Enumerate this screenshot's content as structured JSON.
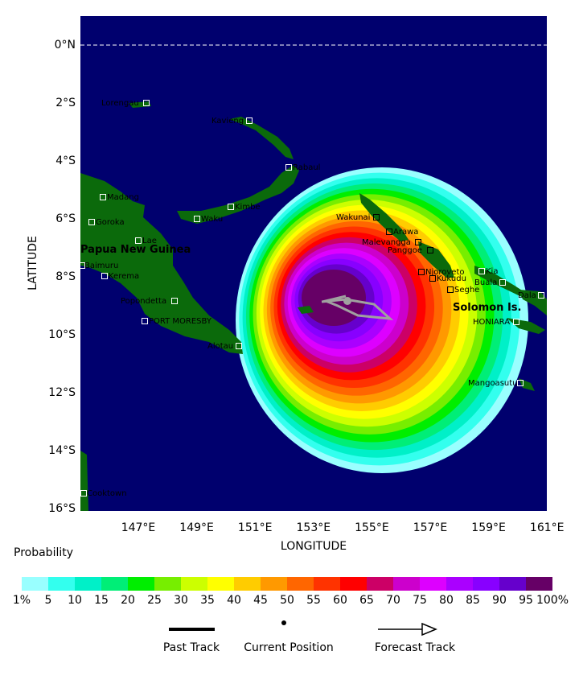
{
  "axes": {
    "x_label": "LONGITUDE",
    "y_label": "LATITUDE",
    "x_ticks": [
      "147°E",
      "149°E",
      "151°E",
      "153°E",
      "155°E",
      "157°E",
      "159°E",
      "161°E"
    ],
    "y_ticks": [
      "0°N",
      "2°S",
      "4°S",
      "6°S",
      "8°S",
      "10°S",
      "12°S",
      "14°S",
      "16°S"
    ]
  },
  "places": [
    "Lorengau",
    "Kavieng",
    "Rabaul",
    "Madang",
    "Goroka",
    "Kimbe",
    "Waku",
    "Lae",
    "Baimuru",
    "Kerema",
    "Popondetta",
    "PORT MORESBY",
    "Alotau",
    "Cooktown",
    "Wakunai",
    "Arawa",
    "Malevangga",
    "Panggoe",
    "Njoroveto",
    "Kia",
    "Kukudu",
    "Buala",
    "Seghe",
    "Dala",
    "HONIARA",
    "Mangoasutu"
  ],
  "regions": [
    "Papua New Guinea",
    "Solomon Is."
  ],
  "legend": {
    "title": "Probability",
    "levels": [
      "1%",
      "5",
      "10",
      "15",
      "20",
      "25",
      "30",
      "35",
      "40",
      "45",
      "50",
      "55",
      "60",
      "65",
      "70",
      "75",
      "80",
      "85",
      "90",
      "95",
      "100%"
    ],
    "colors": [
      "#99ffff",
      "#33ffee",
      "#00f0c8",
      "#00ee77",
      "#00ee00",
      "#77ee00",
      "#ccff00",
      "#ffff00",
      "#ffcc00",
      "#ff9900",
      "#ff6600",
      "#ff3300",
      "#ff0000",
      "#cc0066",
      "#cc00cc",
      "#dd00ff",
      "#aa00ff",
      "#8800ff",
      "#6600cc",
      "#660066"
    ]
  },
  "track_legend": [
    "Past Track",
    "Current Position",
    "Forecast Track"
  ]
}
